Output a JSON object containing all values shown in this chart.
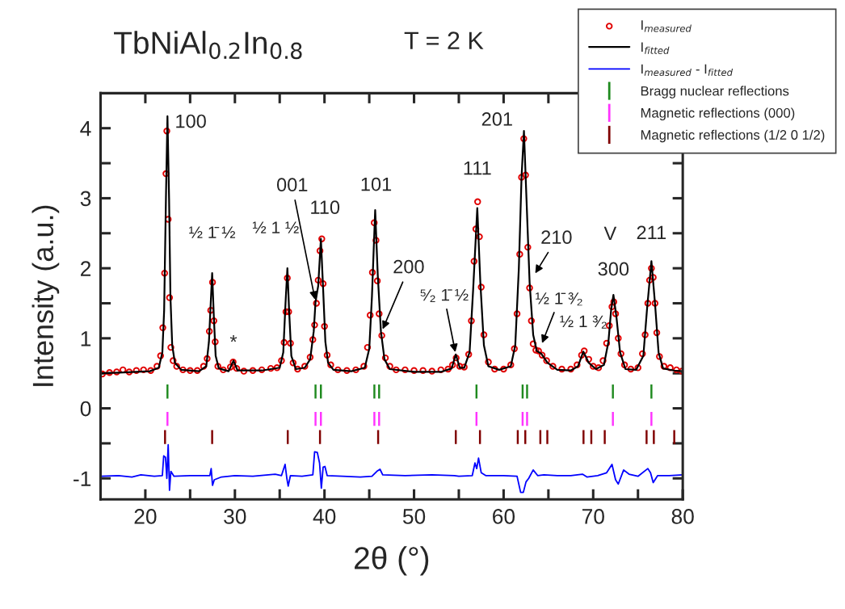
{
  "chart_data": {
    "type": "line",
    "title": "TbNiAl$_{0.2}$In$_{0.8}$",
    "subtitle": "T = 2 K",
    "xlabel": "2θ (°)",
    "ylabel": "Intensity (a.u.)",
    "xlim": [
      15,
      80
    ],
    "xticks": [
      20,
      {
        "value": 25,
        "label": null
      },
      30,
      {
        "value": 35,
        "label": null
      },
      40,
      {
        "value": 45,
        "label": null
      },
      50,
      {
        "value": 55,
        "label": null
      },
      60,
      {
        "value": 65,
        "label": null
      },
      70,
      {
        "value": 75,
        "label": null
      },
      80
    ],
    "ylim": [
      -1.3,
      4.5
    ],
    "yticks": [
      -1,
      {
        "value": -0.5,
        "label": null
      },
      0,
      {
        "value": 0.5,
        "label": null
      },
      1,
      {
        "value": 1.5,
        "label": null
      },
      2,
      {
        "value": 2.5,
        "label": null
      },
      3,
      {
        "value": 3.5,
        "label": null
      },
      4
    ],
    "legend": "top right",
    "series": [
      {
        "name": "I$_{measured}$",
        "type": "scatter",
        "marker": "circle",
        "color": "#e00000",
        "x": [
          15.2,
          16,
          16.8,
          17.5,
          18.2,
          19,
          19.8,
          20.6,
          21.3,
          21.7,
          21.95,
          22.15,
          22.3,
          22.4,
          22.55,
          22.7,
          22.85,
          23.1,
          23.5,
          24.2,
          25,
          25.8,
          26.5,
          26.9,
          27.15,
          27.3,
          27.5,
          27.65,
          27.8,
          28.1,
          28.7,
          29.5,
          29.8,
          30.2,
          31,
          32,
          33,
          34,
          34.7,
          35.2,
          35.5,
          35.7,
          35.85,
          36.0,
          36.2,
          36.5,
          37,
          37.8,
          38.4,
          38.7,
          38.9,
          39.1,
          39.3,
          39.5,
          39.7,
          39.85,
          40.0,
          40.3,
          40.7,
          41.5,
          42.5,
          43.5,
          44.4,
          44.8,
          45.1,
          45.35,
          45.55,
          45.75,
          45.9,
          46.1,
          46.4,
          46.8,
          47.3,
          48,
          49,
          50,
          51,
          52,
          53,
          53.8,
          54.3,
          54.7,
          55.1,
          55.6,
          56.1,
          56.4,
          56.7,
          56.9,
          57.1,
          57.3,
          57.5,
          57.8,
          58.3,
          59,
          60,
          60.8,
          61.2,
          61.5,
          61.8,
          62.0,
          62.25,
          62.45,
          62.7,
          62.9,
          63.1,
          63.3,
          63.6,
          63.9,
          64.3,
          64.8,
          65.5,
          66.5,
          67.5,
          68.2,
          68.7,
          69.0,
          69.5,
          70.0,
          70.6,
          71.1,
          71.5,
          71.8,
          72.1,
          72.3,
          72.5,
          72.8,
          73.1,
          73.5,
          74.2,
          75,
          75.5,
          75.8,
          76.1,
          76.3,
          76.5,
          76.7,
          76.9,
          77.1,
          77.4,
          77.9,
          78.6,
          79.3,
          79.9
        ],
        "values": [
          0.49,
          0.51,
          0.52,
          0.55,
          0.52,
          0.54,
          0.55,
          0.54,
          0.6,
          0.75,
          1.15,
          1.93,
          3.35,
          3.96,
          2.7,
          1.58,
          0.87,
          0.68,
          0.6,
          0.55,
          0.54,
          0.54,
          0.6,
          0.71,
          1.1,
          1.4,
          1.8,
          1.25,
          0.95,
          0.6,
          0.55,
          0.59,
          0.66,
          0.57,
          0.53,
          0.54,
          0.55,
          0.57,
          0.58,
          0.68,
          0.94,
          1.38,
          1.86,
          1.38,
          0.93,
          0.65,
          0.56,
          0.6,
          0.73,
          0.98,
          1.19,
          1.5,
          1.83,
          2.25,
          2.42,
          1.78,
          1.17,
          0.76,
          0.62,
          0.55,
          0.54,
          0.55,
          0.6,
          0.87,
          1.33,
          1.94,
          2.65,
          2.4,
          1.82,
          1.35,
          1.04,
          0.72,
          0.6,
          0.55,
          0.55,
          0.54,
          0.54,
          0.53,
          0.55,
          0.56,
          0.62,
          0.72,
          0.6,
          0.59,
          0.77,
          1.25,
          2.1,
          2.56,
          2.95,
          2.45,
          1.73,
          1.05,
          0.66,
          0.56,
          0.56,
          0.62,
          0.85,
          1.35,
          2.2,
          3.3,
          3.85,
          3.33,
          2.3,
          1.72,
          1.25,
          0.92,
          0.83,
          0.82,
          0.76,
          0.68,
          0.6,
          0.56,
          0.56,
          0.62,
          0.76,
          0.82,
          0.7,
          0.6,
          0.58,
          0.68,
          0.93,
          1.18,
          1.45,
          1.52,
          1.35,
          1.0,
          0.78,
          0.62,
          0.56,
          0.58,
          0.78,
          1.05,
          1.5,
          1.83,
          2.0,
          1.87,
          1.5,
          1.08,
          0.74,
          0.6,
          0.58,
          0.55,
          0.53
        ]
      },
      {
        "name": "I$_{fitted}$",
        "marker": "none",
        "line_style": "solid",
        "color": "#000000",
        "x": [
          15,
          17,
          19,
          20.5,
          21.5,
          21.9,
          22.1,
          22.3,
          22.47,
          22.65,
          22.8,
          23.0,
          23.3,
          24,
          26,
          26.8,
          27.1,
          27.3,
          27.46,
          27.65,
          27.85,
          28.2,
          29.3,
          29.84,
          30.3,
          33,
          35,
          35.4,
          35.65,
          35.86,
          36.05,
          36.3,
          36.8,
          37.8,
          38.4,
          38.8,
          39.0,
          39.3,
          39.6,
          39.85,
          40.1,
          40.4,
          41,
          43,
          44.5,
          45.0,
          45.3,
          45.66,
          45.95,
          46.3,
          46.7,
          47.3,
          50,
          53,
          54.2,
          54.66,
          55.1,
          55.6,
          56.2,
          56.6,
          57.06,
          57.4,
          57.8,
          58.3,
          59.5,
          60.8,
          61.3,
          61.7,
          62.0,
          62.27,
          62.55,
          62.9,
          63.3,
          63.7,
          64.2,
          64.9,
          66,
          67.5,
          68.3,
          68.9,
          69.5,
          70.3,
          71.2,
          71.7,
          72.0,
          72.26,
          72.6,
          73.0,
          73.6,
          74.8,
          75.6,
          76.0,
          76.5,
          76.9,
          77.3,
          77.8,
          79,
          80
        ],
        "values": [
          0.5,
          0.51,
          0.52,
          0.53,
          0.58,
          0.8,
          1.4,
          3.0,
          4.17,
          3.0,
          1.6,
          0.9,
          0.65,
          0.55,
          0.53,
          0.6,
          0.95,
          1.5,
          1.93,
          1.3,
          0.75,
          0.57,
          0.53,
          0.68,
          0.54,
          0.54,
          0.58,
          0.8,
          1.5,
          2.0,
          1.4,
          0.75,
          0.56,
          0.58,
          0.7,
          1.1,
          1.52,
          1.75,
          2.42,
          1.7,
          0.95,
          0.65,
          0.55,
          0.53,
          0.58,
          0.85,
          1.6,
          2.83,
          1.9,
          1.1,
          0.7,
          0.56,
          0.52,
          0.52,
          0.57,
          0.77,
          0.58,
          0.58,
          0.8,
          1.7,
          2.86,
          1.8,
          0.9,
          0.6,
          0.55,
          0.6,
          0.9,
          2.0,
          3.3,
          3.96,
          3.0,
          1.8,
          1.05,
          0.82,
          0.78,
          0.65,
          0.55,
          0.54,
          0.6,
          0.81,
          0.65,
          0.56,
          0.62,
          0.95,
          1.4,
          1.62,
          1.3,
          0.8,
          0.56,
          0.55,
          0.75,
          1.4,
          2.1,
          1.5,
          0.8,
          0.57,
          0.54,
          0.53
        ]
      },
      {
        "name": "I$_{measured}$ - I$_{fitted}$",
        "type": "line",
        "marker": "none",
        "line_style": "solid",
        "color": "#0000ff",
        "x": [
          15,
          17,
          18.5,
          19.5,
          21,
          21.9,
          22.05,
          22.25,
          22.4,
          22.55,
          22.7,
          22.85,
          23.2,
          25,
          27.2,
          27.35,
          27.5,
          27.7,
          28.5,
          30,
          32,
          34.5,
          35.2,
          35.6,
          35.8,
          35.95,
          36.2,
          37.5,
          38.7,
          38.9,
          39.2,
          39.45,
          39.65,
          39.85,
          40.05,
          40.3,
          42,
          44,
          45.3,
          45.5,
          45.7,
          45.85,
          46.2,
          46.5,
          49,
          52,
          54.5,
          55,
          56.5,
          56.8,
          57.0,
          57.2,
          57.5,
          58,
          60,
          61.5,
          61.9,
          62.2,
          62.5,
          62.8,
          63.3,
          63.8,
          64.5,
          66,
          67.5,
          68.8,
          69.3,
          70.5,
          71.5,
          72.1,
          72.5,
          72.8,
          73.4,
          74,
          75,
          76.1,
          76.4,
          76.7,
          77.2,
          78.5,
          80
        ],
        "values": [
          -0.97,
          -0.96,
          -0.98,
          -0.95,
          -0.97,
          -0.96,
          -0.68,
          -0.7,
          -1.0,
          -0.52,
          -1.17,
          -0.9,
          -0.97,
          -0.96,
          -0.96,
          -0.86,
          -1.1,
          -1.02,
          -0.98,
          -0.96,
          -0.97,
          -0.94,
          -0.96,
          -0.8,
          -1.0,
          -1.11,
          -0.96,
          -0.97,
          -0.95,
          -0.62,
          -0.63,
          -0.78,
          -1.14,
          -0.84,
          -0.83,
          -0.96,
          -0.97,
          -0.98,
          -0.97,
          null,
          null,
          -0.9,
          -0.87,
          -0.95,
          -0.96,
          -0.95,
          -0.96,
          -0.97,
          -0.96,
          -0.78,
          -0.86,
          -0.71,
          -0.92,
          -0.96,
          -0.96,
          -0.97,
          -1.2,
          -1.2,
          -1.05,
          -1.0,
          -0.88,
          -0.96,
          -0.95,
          -0.96,
          -0.96,
          -0.94,
          -0.98,
          -0.96,
          -0.92,
          -0.8,
          -1.02,
          -1.08,
          -0.88,
          -0.94,
          -0.97,
          -0.86,
          -0.92,
          -1.06,
          -0.96,
          -0.96,
          -0.95
        ]
      },
      {
        "name": "Bragg nuclear reflections",
        "type": "bar",
        "color": "#1f8a1f",
        "base": [
          0.14,
          0.14,
          0.14,
          0.14,
          0.14,
          0.14,
          0.14,
          0.14,
          0.14,
          0.14
        ],
        "x": [
          22.47,
          39.0,
          39.6,
          45.57,
          46.1,
          56.97,
          62.12,
          62.62,
          72.2,
          76.5
        ],
        "values": [
          0.2,
          0.2,
          0.2,
          0.2,
          0.2,
          0.2,
          0.2,
          0.2,
          0.2,
          0.2
        ]
      },
      {
        "name": "Magnetic reflections (000)",
        "type": "bar",
        "color": "#ff33ff",
        "base": [
          -0.25,
          -0.25,
          -0.25,
          -0.25,
          -0.25,
          -0.25,
          -0.25,
          -0.25,
          -0.25,
          -0.25
        ],
        "x": [
          22.47,
          39.0,
          39.6,
          45.57,
          46.1,
          56.97,
          62.12,
          62.62,
          72.2,
          76.5
        ],
        "values": [
          0.2,
          0.2,
          0.2,
          0.2,
          0.2,
          0.2,
          0.2,
          0.2,
          0.2,
          0.2
        ]
      },
      {
        "name": "Magnetic reflections (1/2 0 1/2)",
        "type": "bar",
        "color": "#800000",
        "base": [
          -0.51,
          -0.51,
          -0.51,
          -0.51,
          -0.51,
          -0.51,
          -0.51,
          -0.51,
          -0.51,
          -0.51,
          -0.51,
          -0.51,
          -0.51,
          -0.51,
          -0.51,
          -0.51,
          -0.51
        ],
        "x": [
          22.2,
          27.46,
          35.9,
          39.5,
          45.99,
          54.66,
          57.36,
          61.58,
          62.42,
          64.1,
          64.88,
          68.92,
          69.79,
          71.29,
          75.96,
          76.77,
          79.05
        ],
        "values": [
          0.2,
          0.2,
          0.2,
          0.2,
          0.2,
          0.2,
          0.2,
          0.2,
          0.2,
          0.2,
          0.2,
          0.2,
          0.2,
          0.2,
          0.2,
          0.2,
          0.2
        ]
      }
    ],
    "annotations": [
      {
        "text": "100",
        "x": 22.47,
        "y": 4.17
      },
      {
        "text": "½ 1̄ ½",
        "x": 27.46,
        "y": 1.93
      },
      {
        "text": "*",
        "x": 29.84,
        "y": 0.68
      },
      {
        "text": "½ 1 ½",
        "x": 35.86,
        "y": 2.0
      },
      {
        "text": "001",
        "x": 39.0,
        "y": 1.52
      },
      {
        "text": "110",
        "x": 39.6,
        "y": 2.42
      },
      {
        "text": "101",
        "x": 45.66,
        "y": 2.83
      },
      {
        "text": "200",
        "x": 46.4,
        "y": 1.1
      },
      {
        "text": "⁵⁄₂ 1̄ ½",
        "x": 54.66,
        "y": 0.77
      },
      {
        "text": "111",
        "x": 57.06,
        "y": 2.86
      },
      {
        "text": "201",
        "x": 62.27,
        "y": 3.96
      },
      {
        "text": "210",
        "x": 63.4,
        "y": 1.9
      },
      {
        "text": "½ 1̄ ³⁄₂",
        "x": 64.2,
        "y": 0.9
      },
      {
        "text": "½ 1 ³⁄₂",
        "x": 68.92,
        "y": 0.81
      },
      {
        "text": "V",
        "x": 72.26,
        "y": 1.62
      },
      {
        "text": "300",
        "x": 72.26,
        "y": 1.62
      },
      {
        "text": "211",
        "x": 76.5,
        "y": 2.1
      }
    ]
  }
}
